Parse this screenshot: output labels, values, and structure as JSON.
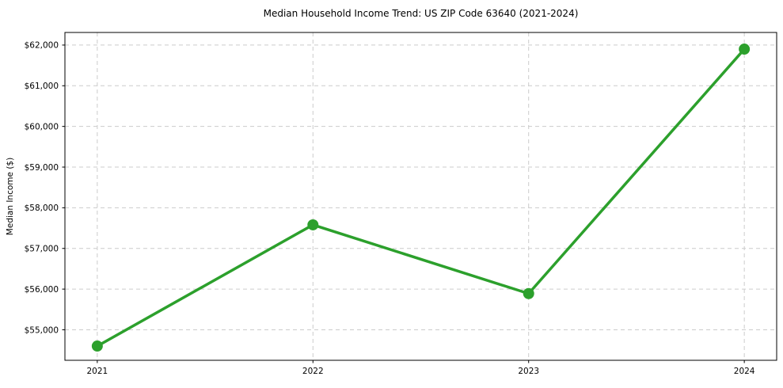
{
  "chart_data": {
    "type": "line",
    "title": "Median Household Income Trend: US ZIP Code 63640 (2021-2024)",
    "xlabel": "",
    "ylabel": "Median Income ($)",
    "x": [
      2021,
      2022,
      2023,
      2024
    ],
    "values": [
      54600,
      57580,
      55890,
      61900
    ],
    "xticks": [
      2021,
      2022,
      2023,
      2024
    ],
    "xtick_labels": [
      "2021",
      "2022",
      "2023",
      "2024"
    ],
    "yticks": [
      55000,
      56000,
      57000,
      58000,
      59000,
      60000,
      61000,
      62000
    ],
    "ytick_labels": [
      "$55,000",
      "$56,000",
      "$57,000",
      "$58,000",
      "$59,000",
      "$60,000",
      "$61,000",
      "$62,000"
    ],
    "xlim": [
      2020.85,
      2024.15
    ],
    "ylim": [
      54250,
      62310
    ],
    "grid": true,
    "grid_style": "dashed",
    "legend": false,
    "line_color": "#2ca02c",
    "marker": "circle",
    "grid_color": "#cccccc",
    "axis_color": "#000000",
    "background_color": "#ffffff"
  }
}
